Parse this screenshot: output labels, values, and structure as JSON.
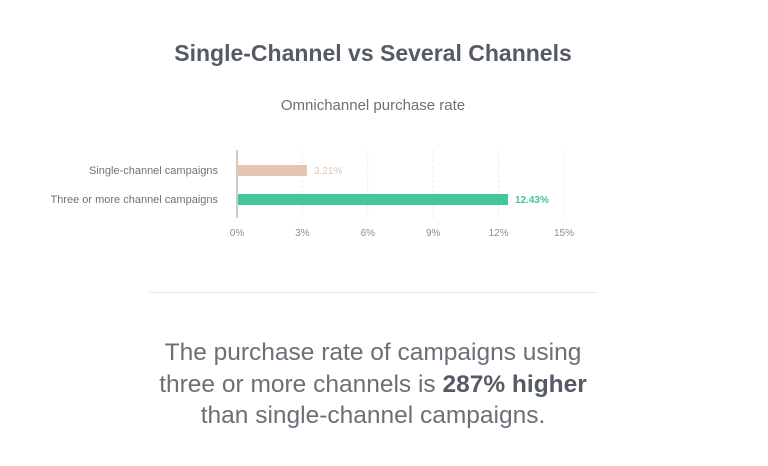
{
  "title": "Single-Channel vs Several Channels",
  "chart_data": {
    "type": "bar",
    "orientation": "horizontal",
    "title": "Omnichannel purchase rate",
    "categories": [
      "Single-channel campaigns",
      "Three or more channel campaigns"
    ],
    "values": [
      3.21,
      12.43
    ],
    "data_labels": [
      "3.21%",
      "12.43%"
    ],
    "colors": [
      "#e4c5b0",
      "#44c59a"
    ],
    "xlim": [
      0,
      15
    ],
    "x_ticks": [
      0,
      3,
      6,
      9,
      12,
      15
    ],
    "x_tick_labels": [
      "0%",
      "3%",
      "6%",
      "9%",
      "12%",
      "15%"
    ],
    "grid": true,
    "xlabel": "",
    "ylabel": ""
  },
  "summary": {
    "before": "The purchase rate of campaigns using three or more channels is ",
    "highlight": "287% higher",
    "after": " than single-channel campaigns."
  }
}
